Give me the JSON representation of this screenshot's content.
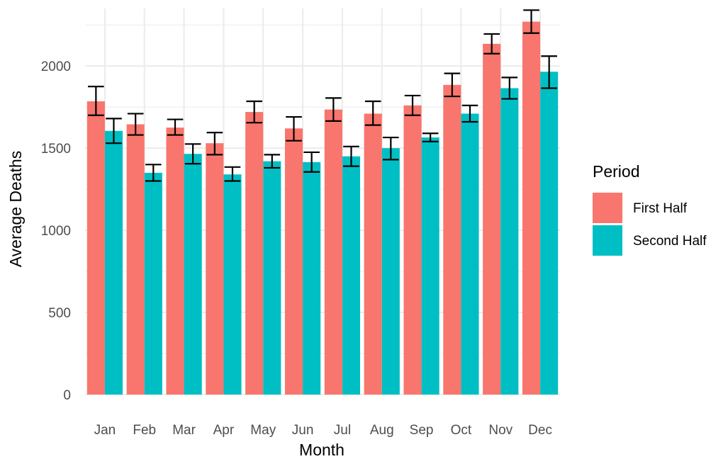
{
  "chart_data": {
    "type": "bar",
    "xlabel": "Month",
    "ylabel": "Average Deaths",
    "categories": [
      "Jan",
      "Feb",
      "Mar",
      "Apr",
      "May",
      "Jun",
      "Jul",
      "Aug",
      "Sep",
      "Oct",
      "Nov",
      "Dec"
    ],
    "ylim": [
      0,
      2350
    ],
    "yticks": [
      "0",
      "500",
      "1000",
      "1500",
      "2000"
    ],
    "grid": true,
    "legend": {
      "title": "Period",
      "position": "right"
    },
    "series": [
      {
        "name": "First Half",
        "color": "#F8766D",
        "values": [
          1785,
          1645,
          1625,
          1530,
          1720,
          1620,
          1735,
          1710,
          1760,
          1885,
          2135,
          2270
        ],
        "error_low": [
          1700,
          1580,
          1580,
          1460,
          1655,
          1545,
          1665,
          1640,
          1700,
          1815,
          2075,
          2200
        ],
        "error_high": [
          1875,
          1710,
          1675,
          1595,
          1785,
          1690,
          1805,
          1785,
          1820,
          1955,
          2195,
          2340
        ]
      },
      {
        "name": "Second Half",
        "color": "#00BFC4",
        "values": [
          1605,
          1350,
          1465,
          1340,
          1420,
          1415,
          1450,
          1500,
          1565,
          1710,
          1865,
          1965
        ],
        "error_low": [
          1530,
          1300,
          1405,
          1300,
          1380,
          1355,
          1390,
          1430,
          1540,
          1660,
          1800,
          1865
        ],
        "error_high": [
          1680,
          1400,
          1525,
          1385,
          1460,
          1475,
          1510,
          1565,
          1590,
          1760,
          1930,
          2060
        ]
      }
    ]
  }
}
